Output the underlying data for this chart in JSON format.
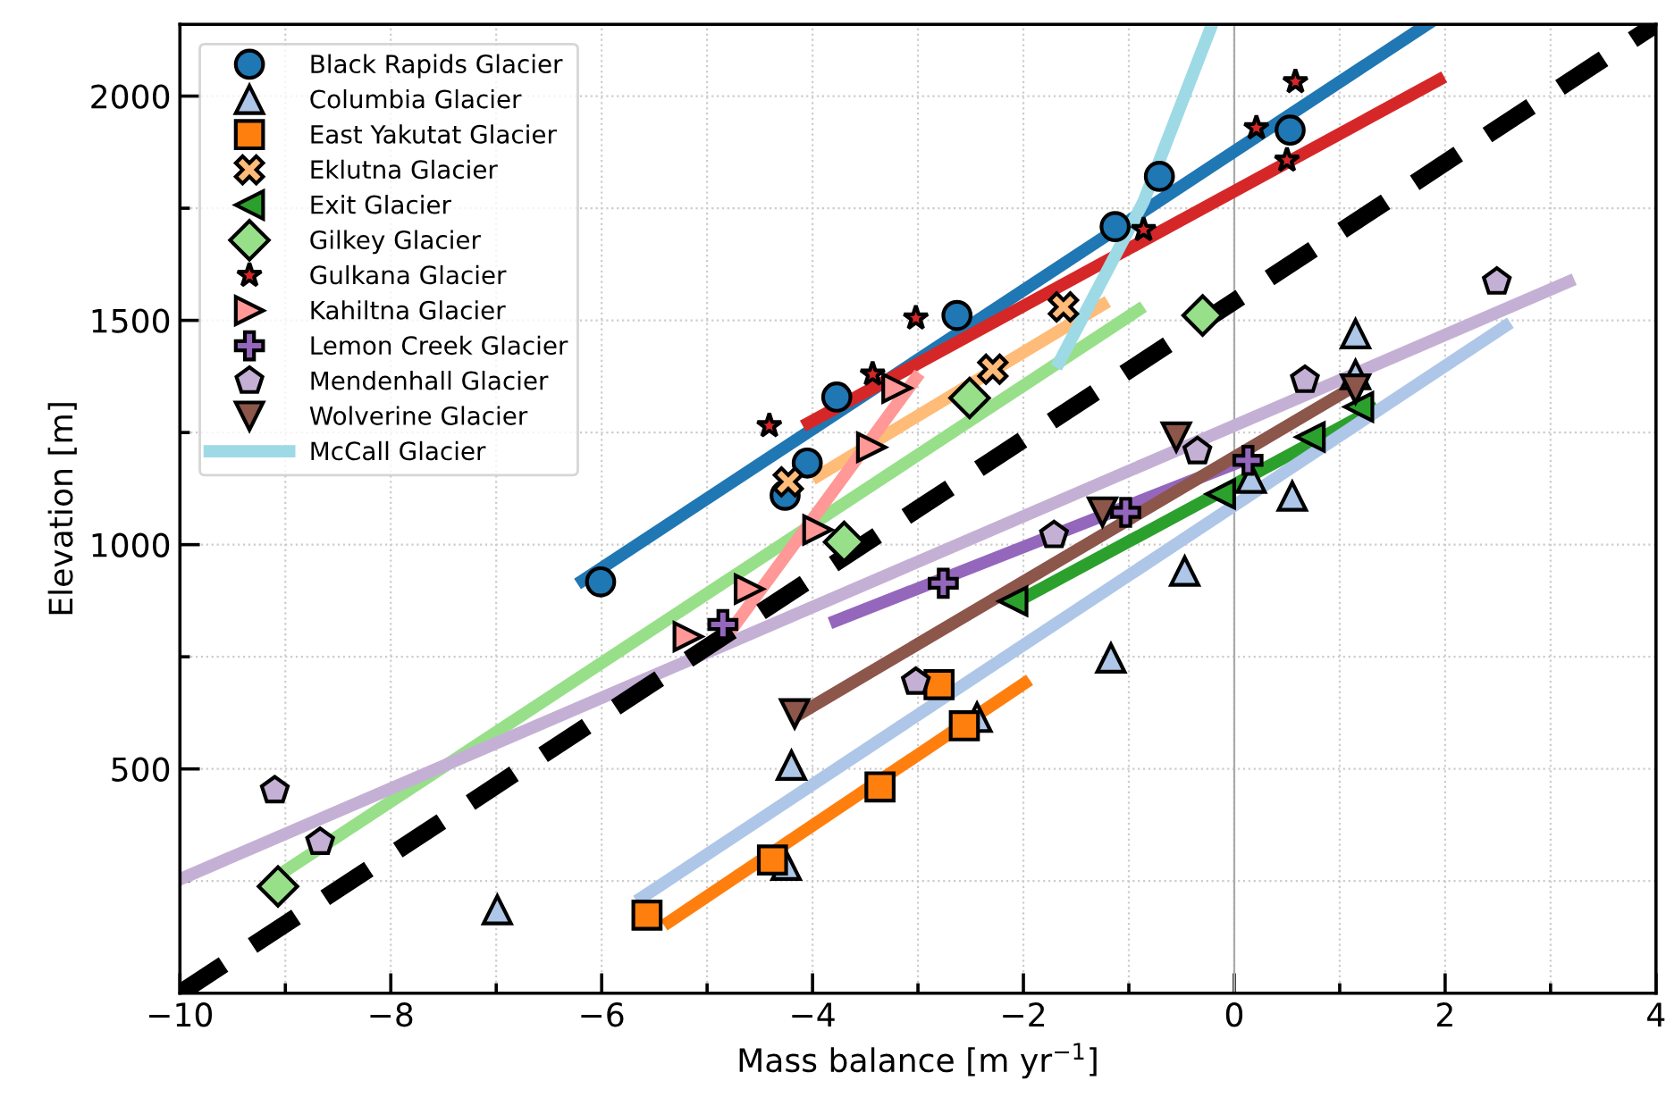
{
  "chart_data": {
    "type": "scatter",
    "xlabel": "Mass balance [m yr$^{−1}$]",
    "ylabel": "Elevation [m]",
    "xlim": [
      -10,
      4
    ],
    "ylim": [
      0,
      2160
    ],
    "xticks": [
      -10,
      {
        "value": -9,
        "label": null
      },
      -8,
      {
        "value": -7,
        "label": null
      },
      -6,
      {
        "value": -5,
        "label": null
      },
      -4,
      {
        "value": -3,
        "label": null
      },
      -2,
      {
        "value": -1,
        "label": null
      },
      0,
      {
        "value": 1,
        "label": null
      },
      2,
      {
        "value": 3,
        "label": null
      },
      4
    ],
    "yticks": [
      {
        "value": 250,
        "label": null
      },
      500,
      {
        "value": 750,
        "label": null
      },
      1000,
      {
        "value": 1250,
        "label": null
      },
      1500,
      {
        "value": 1750,
        "label": null
      },
      2000
    ],
    "grid": true,
    "legend": "top left",
    "ref_lines": [
      {
        "axis": "x",
        "value": 0,
        "color": "#aaaaaa",
        "line_style": "solid"
      }
    ],
    "series": [
      {
        "type": "line",
        "color": "#000000",
        "line_style": "dashed",
        "x": [
          -10,
          4
        ],
        "values": [
          0,
          2160
        ]
      },
      {
        "type": "line",
        "color": "#1f77b4",
        "x": [
          -6.18,
          1.83
        ],
        "values": [
          920,
          2160
        ]
      },
      {
        "type": "line",
        "color": "#d62728",
        "x": [
          -4.04,
          1.94
        ],
        "values": [
          1271,
          2036
        ]
      },
      {
        "type": "line",
        "color": "#ffbb78",
        "x": [
          -3.95,
          -1.25
        ],
        "values": [
          1153,
          1535
        ]
      },
      {
        "type": "line",
        "color": "#98df8a",
        "x": [
          -9.05,
          -0.91
        ],
        "values": [
          265,
          1523
        ]
      },
      {
        "type": "line",
        "color": "#ff9896",
        "x": [
          -4.77,
          -3.02
        ],
        "values": [
          810,
          1371
        ]
      },
      {
        "type": "line",
        "color": "#c5b0d5",
        "x": [
          -10,
          3.17
        ],
        "values": [
          254,
          1586
        ]
      },
      {
        "type": "line",
        "color": "#9467bd",
        "x": [
          -3.78,
          0.13
        ],
        "values": [
          830,
          1192
        ]
      },
      {
        "type": "line",
        "color": "#8c564b",
        "x": [
          -4.12,
          1.18
        ],
        "values": [
          623,
          1359
        ]
      },
      {
        "type": "line",
        "color": "#2ca02c",
        "x": [
          -2.05,
          1.31
        ],
        "values": [
          874,
          1300
        ]
      },
      {
        "type": "line",
        "color": "#aec7e8",
        "x": [
          -5.62,
          2.57
        ],
        "values": [
          213,
          1487
        ]
      },
      {
        "type": "line",
        "color": "#ff7f0e",
        "x": [
          -5.36,
          -1.99
        ],
        "values": [
          159,
          691
        ]
      },
      {
        "name": "Black Rapids Glacier",
        "color": "#1f77b4",
        "marker": "circle",
        "x": [
          -6.01,
          -4.26,
          -4.05,
          -3.77,
          -2.63,
          -1.13,
          -0.71,
          0.53
        ],
        "values": [
          917,
          1110,
          1182,
          1329,
          1511,
          1709,
          1821,
          1924
        ]
      },
      {
        "name": "Columbia Glacier",
        "color": "#aec7e8",
        "marker": "triangle",
        "x": [
          -6.99,
          -4.25,
          -4.2,
          -2.44,
          -1.17,
          -0.47,
          0.55,
          0.16,
          1.15,
          1.15
        ],
        "values": [
          186,
          285,
          508,
          615,
          747,
          941,
          1108,
          1148,
          1470,
          1379
        ]
      },
      {
        "name": "East Yakutat Glacier",
        "color": "#ff7f0e",
        "marker": "square",
        "x": [
          -5.57,
          -4.38,
          -3.36,
          -2.8,
          -2.56
        ],
        "values": [
          174,
          297,
          460,
          688,
          596
        ]
      },
      {
        "name": "Eklutna Glacier",
        "color": "#ffbb78",
        "marker": "cross",
        "x": [
          -4.23,
          -2.29,
          -1.62
        ],
        "values": [
          1140,
          1391,
          1530
        ]
      },
      {
        "name": "Exit Glacier",
        "color": "#2ca02c",
        "marker": "triangle_left",
        "x": [
          -2.1,
          -0.13,
          0.72,
          1.18
        ],
        "values": [
          874,
          1113,
          1240,
          1307
        ]
      },
      {
        "name": "Gilkey Glacier",
        "color": "#98df8a",
        "marker": "diamond",
        "x": [
          -9.07,
          -3.7,
          -2.51,
          -0.3
        ],
        "values": [
          238,
          1006,
          1327,
          1511
        ]
      },
      {
        "name": "Gulkana Glacier",
        "color": "#d62728",
        "marker": "star",
        "x": [
          -4.41,
          -3.43,
          -3.02,
          -0.86,
          0.21,
          0.5,
          0.58
        ],
        "values": [
          1265,
          1380,
          1505,
          1702,
          1929,
          1857,
          2032
        ]
      },
      {
        "name": "Kahiltna Glacier",
        "color": "#ff9896",
        "marker": "triangle_right",
        "x": [
          -5.18,
          -4.6,
          -3.95,
          -3.44,
          -3.2
        ],
        "values": [
          795,
          901,
          1033,
          1217,
          1349
        ]
      },
      {
        "name": "Lemon Creek Glacier",
        "color": "#9467bd",
        "marker": "plus",
        "x": [
          -4.85,
          -2.76,
          -1.03,
          0.13
        ],
        "values": [
          822,
          914,
          1072,
          1188
        ]
      },
      {
        "name": "Mendenhall Glacier",
        "color": "#c5b0d5",
        "x": [
          -9.1,
          -8.67,
          -3.02,
          -1.71,
          -0.35,
          0.67,
          2.49
        ],
        "values": [
          452,
          337,
          694,
          1021,
          1208,
          1367,
          1586
        ]
      },
      {
        "name": "Wolverine Glacier",
        "color": "#8c564b",
        "marker": "triangle_down",
        "x": [
          -4.17,
          -1.25,
          -0.55,
          1.15
        ],
        "values": [
          623,
          1073,
          1240,
          1347
        ]
      },
      {
        "type": "line",
        "name": "McCall Glacier",
        "color": "#9edae5",
        "x": [
          -1.66,
          -0.86,
          -0.21
        ],
        "values": [
          1407,
          1765,
          2160
        ]
      }
    ]
  }
}
